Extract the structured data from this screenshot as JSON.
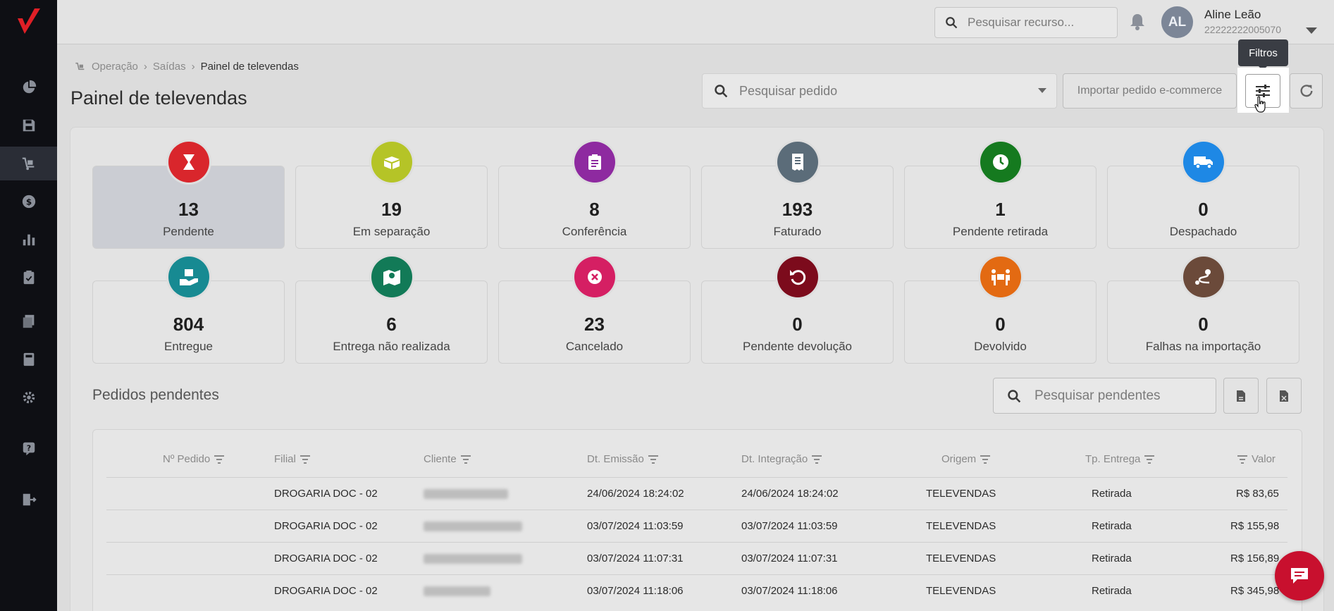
{
  "topbar": {
    "search_placeholder": "Pesquisar recurso...",
    "user_initials": "AL",
    "user_name": "Aline Leão",
    "user_doc": "22222222005070"
  },
  "breadcrumb": [
    "Operação",
    "Saídas",
    "Painel de televendas"
  ],
  "page_title": "Painel de televendas",
  "order_search_placeholder": "Pesquisar pedido",
  "import_button": "Importar pedido e-commerce",
  "filter_tooltip": "Filtros",
  "cards": [
    {
      "value": "13",
      "label": "Pendente",
      "color": "#d9262c",
      "icon": "hourglass-icon"
    },
    {
      "value": "19",
      "label": "Em separação",
      "color": "#b5c427",
      "icon": "boxes-icon"
    },
    {
      "value": "8",
      "label": "Conferência",
      "color": "#8e2aa0",
      "icon": "clipboard-icon"
    },
    {
      "value": "193",
      "label": "Faturado",
      "color": "#5b6c79",
      "icon": "receipt-icon"
    },
    {
      "value": "1",
      "label": "Pendente retirada",
      "color": "#157a1f",
      "icon": "clock-icon"
    },
    {
      "value": "0",
      "label": "Despachado",
      "color": "#1e88e5",
      "icon": "truck-icon"
    },
    {
      "value": "804",
      "label": "Entregue",
      "color": "#178a92",
      "icon": "hand-box-icon"
    },
    {
      "value": "6",
      "label": "Entrega não realizada",
      "color": "#127a57",
      "icon": "map-marker-icon"
    },
    {
      "value": "23",
      "label": "Cancelado",
      "color": "#d51f63",
      "icon": "cancel-icon"
    },
    {
      "value": "0",
      "label": "Pendente devolução",
      "color": "#7c0b1c",
      "icon": "undo-icon"
    },
    {
      "value": "0",
      "label": "Devolvido",
      "color": "#e36a12",
      "icon": "people-box-icon"
    },
    {
      "value": "0",
      "label": "Falhas na importação",
      "color": "#6b4a3a",
      "icon": "route-icon"
    }
  ],
  "section_title": "Pedidos pendentes",
  "pending_search_placeholder": "Pesquisar pendentes",
  "table": {
    "columns": [
      "Nº Pedido",
      "Filial",
      "Cliente",
      "Dt. Emissão",
      "Dt. Integração",
      "Origem",
      "Tp. Entrega",
      "Valor"
    ],
    "rows": [
      {
        "filial": "DROGARIA DOC - 02",
        "emissao": "24/06/2024 18:24:02",
        "integracao": "24/06/2024 18:24:02",
        "origem": "TELEVENDAS",
        "entrega": "Retirada",
        "valor": "R$ 83,65"
      },
      {
        "filial": "DROGARIA DOC - 02",
        "emissao": "03/07/2024 11:03:59",
        "integracao": "03/07/2024 11:03:59",
        "origem": "TELEVENDAS",
        "entrega": "Retirada",
        "valor": "R$ 155,98"
      },
      {
        "filial": "DROGARIA DOC - 02",
        "emissao": "03/07/2024 11:07:31",
        "integracao": "03/07/2024 11:07:31",
        "origem": "TELEVENDAS",
        "entrega": "Retirada",
        "valor": "R$ 156,89"
      },
      {
        "filial": "DROGARIA DOC - 02",
        "emissao": "03/07/2024 11:18:06",
        "integracao": "03/07/2024 11:18:06",
        "origem": "TELEVENDAS",
        "entrega": "Retirada",
        "valor": "R$ 345,98"
      }
    ]
  }
}
